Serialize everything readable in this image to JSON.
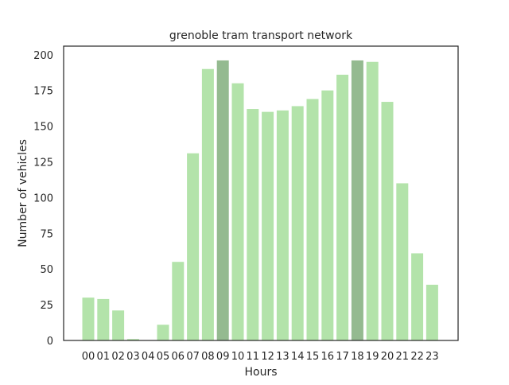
{
  "chart_data": {
    "type": "bar",
    "title": "grenoble tram transport network",
    "xlabel": "Hours",
    "ylabel": "Number of vehicles",
    "ylim": [
      0,
      206
    ],
    "yticks": [
      0,
      25,
      50,
      75,
      100,
      125,
      150,
      175,
      200
    ],
    "grid": false,
    "categories": [
      "00",
      "01",
      "02",
      "03",
      "04",
      "05",
      "06",
      "07",
      "08",
      "09",
      "10",
      "11",
      "12",
      "13",
      "14",
      "15",
      "16",
      "17",
      "18",
      "19",
      "20",
      "21",
      "22",
      "23"
    ],
    "values": [
      30,
      29,
      21,
      1,
      0,
      11,
      55,
      131,
      190,
      196,
      180,
      162,
      160,
      161,
      164,
      169,
      175,
      186,
      196,
      195,
      167,
      110,
      61,
      39
    ],
    "highlighted": [
      "09",
      "18"
    ],
    "colors": {
      "bar": "#b3e3aa",
      "highlight": "#94ba90",
      "axes": "#262626"
    }
  }
}
